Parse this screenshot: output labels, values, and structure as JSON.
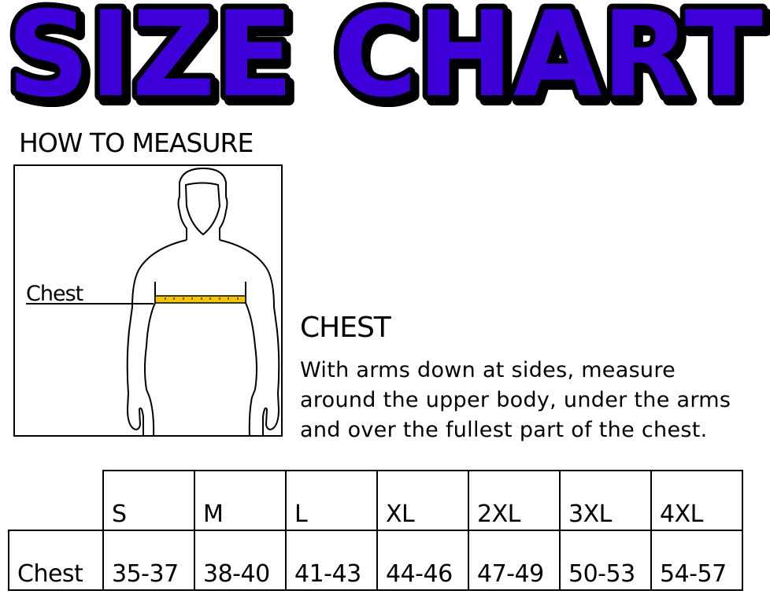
{
  "title": "SIZE CHART",
  "title_colors": {
    "fill": "#3d00d8",
    "outline": "#000000"
  },
  "how_to_measure": "HOW TO MEASURE",
  "figure": {
    "label": "Chest",
    "tape_color": "#f2c500"
  },
  "chest_section": {
    "heading": "CHEST",
    "lines": [
      "With arms down at sides, measure",
      "around the upper body, under the arms",
      "and over the fullest part of the chest."
    ]
  },
  "size_table": {
    "sizes": [
      "S",
      "M",
      "L",
      "XL",
      "2XL",
      "3XL",
      "4XL"
    ],
    "rows": [
      {
        "label": "Chest",
        "values": [
          "35-37",
          "38-40",
          "41-43",
          "44-46",
          "47-49",
          "50-53",
          "54-57"
        ]
      }
    ]
  }
}
